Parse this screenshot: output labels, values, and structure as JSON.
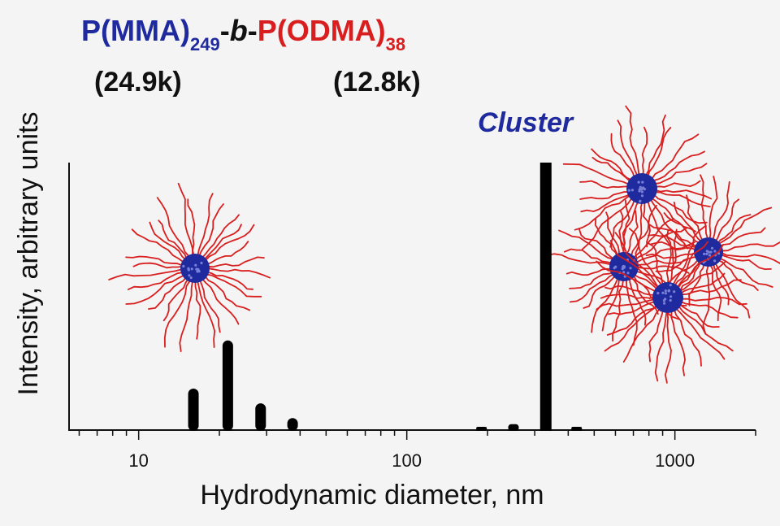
{
  "header": {
    "pmma": "P(MMA)",
    "pmma_sub": "249",
    "dash1": "-",
    "b": "b",
    "dash2": "-",
    "podma": "P(ODMA)",
    "podma_sub": "38",
    "mass_pmma": "(24.9k)",
    "mass_podma": "(12.8k)"
  },
  "labels": {
    "cluster": "Cluster"
  },
  "colors": {
    "blue": "#1f2a9e",
    "red": "#d81e1e",
    "bar": "#000000",
    "background": "#f4f4f4"
  },
  "chart_data": {
    "type": "bar",
    "xlabel": "Hydrodynamic diameter, nm",
    "ylabel": "Intensity, arbitrary units",
    "xscale": "log",
    "xlim": [
      5.5,
      2000
    ],
    "ylim": [
      0,
      100
    ],
    "xticks": [
      10,
      100,
      1000
    ],
    "xtick_labels": [
      "10",
      "100",
      "1000"
    ],
    "grid": false,
    "x": [
      16,
      21.5,
      28.5,
      37.5,
      190,
      250,
      330,
      430
    ],
    "values": [
      15.5,
      33.5,
      10,
      4.5,
      1.2,
      2.2,
      100,
      1.2
    ]
  }
}
